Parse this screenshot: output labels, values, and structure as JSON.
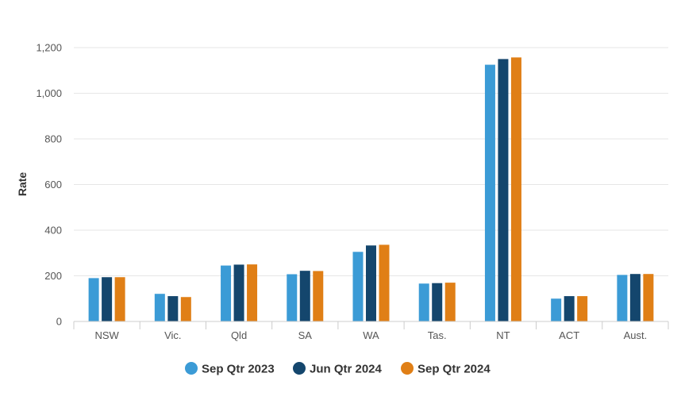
{
  "chart_data": {
    "type": "bar",
    "title": "",
    "xlabel": "",
    "ylabel": "Rate",
    "ylim": [
      0,
      1200
    ],
    "yticks": [
      0,
      200,
      400,
      600,
      800,
      1000,
      1200
    ],
    "ytick_labels": [
      "0",
      "200",
      "400",
      "600",
      "800",
      "1,000",
      "1,200"
    ],
    "grid": true,
    "legend_position": "bottom",
    "categories": [
      "NSW",
      "Vic.",
      "Qld",
      "SA",
      "WA",
      "Tas.",
      "NT",
      "ACT",
      "Aust."
    ],
    "series": [
      {
        "name": "Sep Qtr 2023",
        "color": "#3b9bd6",
        "values": [
          190,
          121,
          245,
          207,
          305,
          166,
          1125,
          100,
          204
        ]
      },
      {
        "name": "Jun Qtr 2024",
        "color": "#14466d",
        "values": [
          194,
          111,
          249,
          222,
          333,
          168,
          1150,
          111,
          208
        ]
      },
      {
        "name": "Sep Qtr 2024",
        "color": "#e07f16",
        "values": [
          194,
          107,
          250,
          221,
          336,
          170,
          1157,
          111,
          208
        ]
      }
    ]
  }
}
